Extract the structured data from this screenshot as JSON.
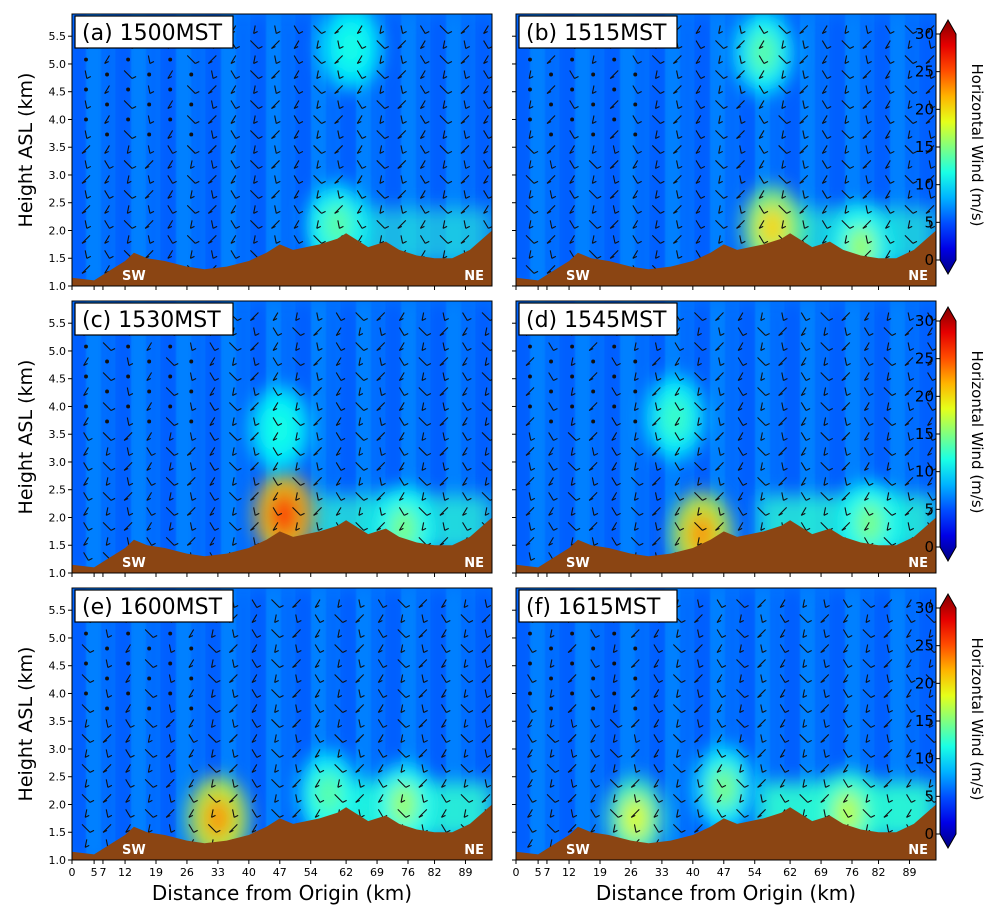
{
  "figure": {
    "xlabel": "Distance from Origin (km)",
    "ylabel": "Height ASL (km)",
    "colorbar_label": "Horizontal Wind (m/s)",
    "colorbar_ticks": [
      0,
      5,
      10,
      15,
      20,
      25,
      30
    ],
    "colormap": "jet",
    "terrain_color": "#8b4513",
    "corner_left": "SW",
    "corner_right": "NE",
    "x_ticks": [
      0,
      5,
      7,
      12,
      19,
      26,
      33,
      40,
      47,
      54,
      62,
      69,
      76,
      82,
      89
    ],
    "x_tick_labels": [
      "0",
      "5",
      "7",
      "12",
      "19",
      "26",
      "33",
      "40",
      "47",
      "54",
      "62",
      "69",
      "76",
      "82",
      "89"
    ],
    "y_ticks": [
      1.0,
      1.5,
      2.0,
      2.5,
      3.0,
      3.5,
      4.0,
      4.5,
      5.0,
      5.5
    ],
    "y_tick_labels": [
      "1.0",
      "1.5",
      "2.0",
      "2.5",
      "3.0",
      "3.5",
      "4.0",
      "4.5",
      "5.0",
      "5.5"
    ]
  },
  "chart_data": [
    {
      "type": "heatmap",
      "title": "(a) 1500MST",
      "xlim": [
        0,
        95
      ],
      "ylim": [
        1.0,
        5.9
      ],
      "value_label": "Horizontal Wind (m/s)",
      "terrain": [
        [
          0,
          1.15
        ],
        [
          5,
          1.1
        ],
        [
          9,
          1.3
        ],
        [
          12,
          1.45
        ],
        [
          14,
          1.6
        ],
        [
          17,
          1.5
        ],
        [
          21,
          1.45
        ],
        [
          26,
          1.35
        ],
        [
          30,
          1.3
        ],
        [
          35,
          1.35
        ],
        [
          40,
          1.45
        ],
        [
          44,
          1.6
        ],
        [
          47,
          1.75
        ],
        [
          50,
          1.65
        ],
        [
          56,
          1.75
        ],
        [
          60,
          1.85
        ],
        [
          62,
          1.95
        ],
        [
          64,
          1.85
        ],
        [
          67,
          1.7
        ],
        [
          71,
          1.8
        ],
        [
          74,
          1.65
        ],
        [
          78,
          1.55
        ],
        [
          82,
          1.5
        ],
        [
          86,
          1.5
        ],
        [
          90,
          1.65
        ],
        [
          95,
          2.0
        ]
      ],
      "wind_hotspots": [
        {
          "x": 60,
          "y": 2.1,
          "value": 14
        },
        {
          "x": 63,
          "y": 5.3,
          "value": 12
        }
      ]
    },
    {
      "type": "heatmap",
      "title": "(b) 1515MST",
      "xlim": [
        0,
        95
      ],
      "ylim": [
        1.0,
        5.9
      ],
      "value_label": "Horizontal Wind (m/s)",
      "terrain": [
        [
          0,
          1.15
        ],
        [
          5,
          1.1
        ],
        [
          9,
          1.3
        ],
        [
          12,
          1.45
        ],
        [
          14,
          1.6
        ],
        [
          17,
          1.5
        ],
        [
          21,
          1.45
        ],
        [
          26,
          1.35
        ],
        [
          30,
          1.3
        ],
        [
          35,
          1.35
        ],
        [
          40,
          1.45
        ],
        [
          44,
          1.6
        ],
        [
          47,
          1.75
        ],
        [
          50,
          1.65
        ],
        [
          56,
          1.75
        ],
        [
          60,
          1.85
        ],
        [
          62,
          1.95
        ],
        [
          64,
          1.85
        ],
        [
          67,
          1.7
        ],
        [
          71,
          1.8
        ],
        [
          74,
          1.65
        ],
        [
          78,
          1.55
        ],
        [
          82,
          1.5
        ],
        [
          86,
          1.5
        ],
        [
          90,
          1.65
        ],
        [
          95,
          2.0
        ]
      ],
      "wind_hotspots": [
        {
          "x": 58,
          "y": 2.05,
          "value": 20
        },
        {
          "x": 78,
          "y": 1.7,
          "value": 16
        },
        {
          "x": 56,
          "y": 5.2,
          "value": 14
        }
      ]
    },
    {
      "type": "heatmap",
      "title": "(c) 1530MST",
      "xlim": [
        0,
        95
      ],
      "ylim": [
        1.0,
        5.9
      ],
      "value_label": "Horizontal Wind (m/s)",
      "terrain": [
        [
          0,
          1.15
        ],
        [
          5,
          1.1
        ],
        [
          9,
          1.3
        ],
        [
          12,
          1.45
        ],
        [
          14,
          1.6
        ],
        [
          17,
          1.5
        ],
        [
          21,
          1.45
        ],
        [
          26,
          1.35
        ],
        [
          30,
          1.3
        ],
        [
          35,
          1.35
        ],
        [
          40,
          1.45
        ],
        [
          44,
          1.6
        ],
        [
          47,
          1.75
        ],
        [
          50,
          1.65
        ],
        [
          56,
          1.75
        ],
        [
          60,
          1.85
        ],
        [
          62,
          1.95
        ],
        [
          64,
          1.85
        ],
        [
          67,
          1.7
        ],
        [
          71,
          1.8
        ],
        [
          74,
          1.65
        ],
        [
          78,
          1.55
        ],
        [
          82,
          1.5
        ],
        [
          86,
          1.5
        ],
        [
          90,
          1.65
        ],
        [
          95,
          2.0
        ]
      ],
      "wind_hotspots": [
        {
          "x": 48,
          "y": 2.05,
          "value": 25
        },
        {
          "x": 75,
          "y": 1.8,
          "value": 15
        },
        {
          "x": 47,
          "y": 3.6,
          "value": 12
        }
      ]
    },
    {
      "type": "heatmap",
      "title": "(d) 1545MST",
      "xlim": [
        0,
        95
      ],
      "ylim": [
        1.0,
        5.9
      ],
      "value_label": "Horizontal Wind (m/s)",
      "terrain": [
        [
          0,
          1.15
        ],
        [
          5,
          1.1
        ],
        [
          9,
          1.3
        ],
        [
          12,
          1.45
        ],
        [
          14,
          1.6
        ],
        [
          17,
          1.5
        ],
        [
          21,
          1.45
        ],
        [
          26,
          1.35
        ],
        [
          30,
          1.3
        ],
        [
          35,
          1.35
        ],
        [
          40,
          1.45
        ],
        [
          44,
          1.6
        ],
        [
          47,
          1.75
        ],
        [
          50,
          1.65
        ],
        [
          56,
          1.75
        ],
        [
          60,
          1.85
        ],
        [
          62,
          1.95
        ],
        [
          64,
          1.85
        ],
        [
          67,
          1.7
        ],
        [
          71,
          1.8
        ],
        [
          74,
          1.65
        ],
        [
          78,
          1.55
        ],
        [
          82,
          1.5
        ],
        [
          86,
          1.5
        ],
        [
          90,
          1.65
        ],
        [
          95,
          2.0
        ]
      ],
      "wind_hotspots": [
        {
          "x": 42,
          "y": 1.7,
          "value": 22
        },
        {
          "x": 80,
          "y": 1.9,
          "value": 15
        },
        {
          "x": 36,
          "y": 3.8,
          "value": 13
        }
      ]
    },
    {
      "type": "heatmap",
      "title": "(e) 1600MST",
      "xlim": [
        0,
        95
      ],
      "ylim": [
        1.0,
        5.9
      ],
      "value_label": "Horizontal Wind (m/s)",
      "terrain": [
        [
          0,
          1.15
        ],
        [
          5,
          1.1
        ],
        [
          9,
          1.3
        ],
        [
          12,
          1.45
        ],
        [
          14,
          1.6
        ],
        [
          17,
          1.5
        ],
        [
          21,
          1.45
        ],
        [
          26,
          1.35
        ],
        [
          30,
          1.3
        ],
        [
          35,
          1.35
        ],
        [
          40,
          1.45
        ],
        [
          44,
          1.6
        ],
        [
          47,
          1.75
        ],
        [
          50,
          1.65
        ],
        [
          56,
          1.75
        ],
        [
          60,
          1.85
        ],
        [
          62,
          1.95
        ],
        [
          64,
          1.85
        ],
        [
          67,
          1.7
        ],
        [
          71,
          1.8
        ],
        [
          74,
          1.65
        ],
        [
          78,
          1.55
        ],
        [
          82,
          1.5
        ],
        [
          86,
          1.5
        ],
        [
          90,
          1.65
        ],
        [
          95,
          2.0
        ]
      ],
      "wind_hotspots": [
        {
          "x": 33,
          "y": 1.75,
          "value": 22
        },
        {
          "x": 75,
          "y": 2.0,
          "value": 16
        },
        {
          "x": 58,
          "y": 2.2,
          "value": 14
        }
      ]
    },
    {
      "type": "heatmap",
      "title": "(f) 1615MST",
      "xlim": [
        0,
        95
      ],
      "ylim": [
        1.0,
        5.9
      ],
      "value_label": "Horizontal Wind (m/s)",
      "terrain": [
        [
          0,
          1.15
        ],
        [
          5,
          1.1
        ],
        [
          9,
          1.3
        ],
        [
          12,
          1.45
        ],
        [
          14,
          1.6
        ],
        [
          17,
          1.5
        ],
        [
          21,
          1.45
        ],
        [
          26,
          1.35
        ],
        [
          30,
          1.3
        ],
        [
          35,
          1.35
        ],
        [
          40,
          1.45
        ],
        [
          44,
          1.6
        ],
        [
          47,
          1.75
        ],
        [
          50,
          1.65
        ],
        [
          56,
          1.75
        ],
        [
          60,
          1.85
        ],
        [
          62,
          1.95
        ],
        [
          64,
          1.85
        ],
        [
          67,
          1.7
        ],
        [
          71,
          1.8
        ],
        [
          74,
          1.65
        ],
        [
          78,
          1.55
        ],
        [
          82,
          1.5
        ],
        [
          86,
          1.5
        ],
        [
          90,
          1.65
        ],
        [
          95,
          2.0
        ]
      ],
      "wind_hotspots": [
        {
          "x": 27,
          "y": 1.75,
          "value": 18
        },
        {
          "x": 75,
          "y": 1.85,
          "value": 17
        },
        {
          "x": 47,
          "y": 2.3,
          "value": 15
        }
      ]
    }
  ]
}
